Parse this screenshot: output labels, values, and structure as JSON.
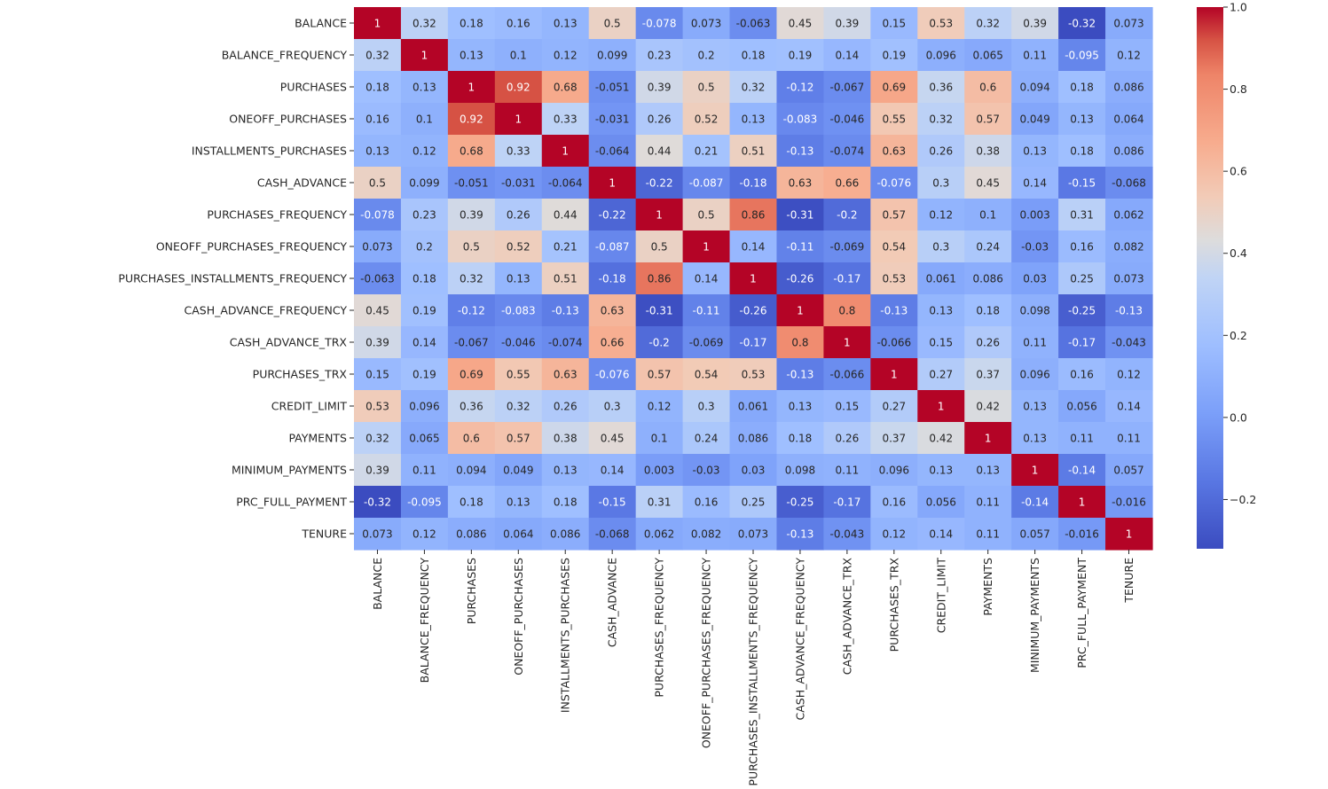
{
  "chart_data": {
    "type": "heatmap",
    "title": "",
    "xlabel": "",
    "ylabel": "",
    "colormap": "coolwarm",
    "vmin": -0.32,
    "vmax": 1.0,
    "colors": {
      "low": "#3b4cc0",
      "mid": "#dddddd",
      "high": "#b40426"
    },
    "labels": [
      "BALANCE",
      "BALANCE_FREQUENCY",
      "PURCHASES",
      "ONEOFF_PURCHASES",
      "INSTALLMENTS_PURCHASES",
      "CASH_ADVANCE",
      "PURCHASES_FREQUENCY",
      "ONEOFF_PURCHASES_FREQUENCY",
      "PURCHASES_INSTALLMENTS_FREQUENCY",
      "CASH_ADVANCE_FREQUENCY",
      "CASH_ADVANCE_TRX",
      "PURCHASES_TRX",
      "CREDIT_LIMIT",
      "PAYMENTS",
      "MINIMUM_PAYMENTS",
      "PRC_FULL_PAYMENT",
      "TENURE"
    ],
    "values": [
      [
        1,
        0.32,
        0.18,
        0.16,
        0.13,
        0.5,
        -0.078,
        0.073,
        -0.063,
        0.45,
        0.39,
        0.15,
        0.53,
        0.32,
        0.39,
        -0.32,
        0.073
      ],
      [
        0.32,
        1,
        0.13,
        0.1,
        0.12,
        0.099,
        0.23,
        0.2,
        0.18,
        0.19,
        0.14,
        0.19,
        0.096,
        0.065,
        0.11,
        -0.095,
        0.12
      ],
      [
        0.18,
        0.13,
        1,
        0.92,
        0.68,
        -0.051,
        0.39,
        0.5,
        0.32,
        -0.12,
        -0.067,
        0.69,
        0.36,
        0.6,
        0.094,
        0.18,
        0.086
      ],
      [
        0.16,
        0.1,
        0.92,
        1,
        0.33,
        -0.031,
        0.26,
        0.52,
        0.13,
        -0.083,
        -0.046,
        0.55,
        0.32,
        0.57,
        0.049,
        0.13,
        0.064
      ],
      [
        0.13,
        0.12,
        0.68,
        0.33,
        1,
        -0.064,
        0.44,
        0.21,
        0.51,
        -0.13,
        -0.074,
        0.63,
        0.26,
        0.38,
        0.13,
        0.18,
        0.086
      ],
      [
        0.5,
        0.099,
        -0.051,
        -0.031,
        -0.064,
        1,
        -0.22,
        -0.087,
        -0.18,
        0.63,
        0.66,
        -0.076,
        0.3,
        0.45,
        0.14,
        -0.15,
        -0.068
      ],
      [
        -0.078,
        0.23,
        0.39,
        0.26,
        0.44,
        -0.22,
        1,
        0.5,
        0.86,
        -0.31,
        -0.2,
        0.57,
        0.12,
        0.1,
        0.003,
        0.31,
        0.062
      ],
      [
        0.073,
        0.2,
        0.5,
        0.52,
        0.21,
        -0.087,
        0.5,
        1,
        0.14,
        -0.11,
        -0.069,
        0.54,
        0.3,
        0.24,
        -0.03,
        0.16,
        0.082
      ],
      [
        -0.063,
        0.18,
        0.32,
        0.13,
        0.51,
        -0.18,
        0.86,
        0.14,
        1,
        -0.26,
        -0.17,
        0.53,
        0.061,
        0.086,
        0.03,
        0.25,
        0.073
      ],
      [
        0.45,
        0.19,
        -0.12,
        -0.083,
        -0.13,
        0.63,
        -0.31,
        -0.11,
        -0.26,
        1,
        0.8,
        -0.13,
        0.13,
        0.18,
        0.098,
        -0.25,
        -0.13
      ],
      [
        0.39,
        0.14,
        -0.067,
        -0.046,
        -0.074,
        0.66,
        -0.2,
        -0.069,
        -0.17,
        0.8,
        1,
        -0.066,
        0.15,
        0.26,
        0.11,
        -0.17,
        -0.043
      ],
      [
        0.15,
        0.19,
        0.69,
        0.55,
        0.63,
        -0.076,
        0.57,
        0.54,
        0.53,
        -0.13,
        -0.066,
        1,
        0.27,
        0.37,
        0.096,
        0.16,
        0.12
      ],
      [
        0.53,
        0.096,
        0.36,
        0.32,
        0.26,
        0.3,
        0.12,
        0.3,
        0.061,
        0.13,
        0.15,
        0.27,
        1,
        0.42,
        0.13,
        0.056,
        0.14
      ],
      [
        0.32,
        0.065,
        0.6,
        0.57,
        0.38,
        0.45,
        0.1,
        0.24,
        0.086,
        0.18,
        0.26,
        0.37,
        0.42,
        1,
        0.13,
        0.11,
        0.11
      ],
      [
        0.39,
        0.11,
        0.094,
        0.049,
        0.13,
        0.14,
        0.003,
        -0.03,
        0.03,
        0.098,
        0.11,
        0.096,
        0.13,
        0.13,
        1,
        -0.14,
        0.057
      ],
      [
        -0.32,
        -0.095,
        0.18,
        0.13,
        0.18,
        -0.15,
        0.31,
        0.16,
        0.25,
        -0.25,
        -0.17,
        0.16,
        0.056,
        0.11,
        -0.14,
        1,
        -0.016
      ],
      [
        0.073,
        0.12,
        0.086,
        0.064,
        0.086,
        -0.068,
        0.062,
        0.082,
        0.073,
        -0.13,
        -0.043,
        0.12,
        0.14,
        0.11,
        0.057,
        -0.016,
        1
      ]
    ],
    "colorbar": {
      "ticks": [
        1.0,
        0.8,
        0.6,
        0.4,
        0.2,
        0.0,
        -0.2
      ],
      "tick_labels": [
        "1.0",
        "0.8",
        "0.6",
        "0.4",
        "0.2",
        "0.0",
        "−0.2"
      ]
    }
  }
}
